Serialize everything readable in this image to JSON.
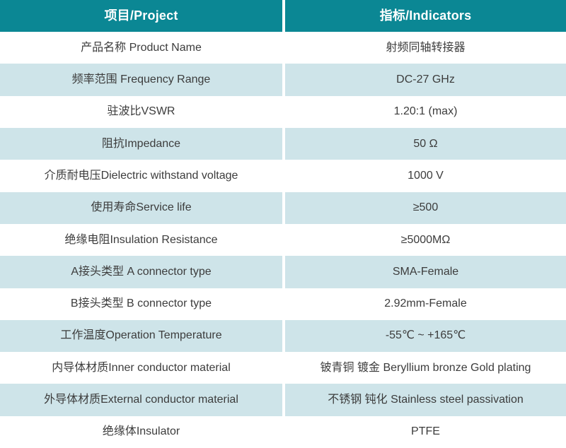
{
  "table": {
    "header": {
      "project": "项目/Project",
      "indicator": "指标/Indicators"
    },
    "rows": [
      {
        "project": "产品名称 Product Name",
        "indicator": "射频同轴转接器"
      },
      {
        "project": "频率范围 Frequency Range",
        "indicator": "DC-27 GHz"
      },
      {
        "project": "驻波比VSWR",
        "indicator": "1.20:1 (max)"
      },
      {
        "project": "阻抗Impedance",
        "indicator": "50 Ω"
      },
      {
        "project": "介质耐电压Dielectric withstand voltage",
        "indicator": "1000 V"
      },
      {
        "project": "使用寿命Service life",
        "indicator": "≥500"
      },
      {
        "project": "绝缘电阻Insulation Resistance",
        "indicator": "≥5000MΩ"
      },
      {
        "project": "A接头类型 A connector type",
        "indicator": "SMA-Female"
      },
      {
        "project": "B接头类型 B connector type",
        "indicator": "2.92mm-Female"
      },
      {
        "project": "工作温度Operation Temperature",
        "indicator": "-55℃ ~ +165℃"
      },
      {
        "project": "内导体材质Inner conductor material",
        "indicator": "铍青铜 镀金 Beryllium bronze Gold plating"
      },
      {
        "project": "外导体材质External conductor material",
        "indicator": "不锈钢 钝化 Stainless steel passivation"
      },
      {
        "project": "绝缘体Insulator",
        "indicator": "PTFE"
      }
    ],
    "colors": {
      "header_bg": "#0b8794",
      "header_text": "#ffffff",
      "row_tint_bg": "#cee4e9",
      "row_white_bg": "#ffffff",
      "body_text": "#3c3c3c"
    }
  }
}
